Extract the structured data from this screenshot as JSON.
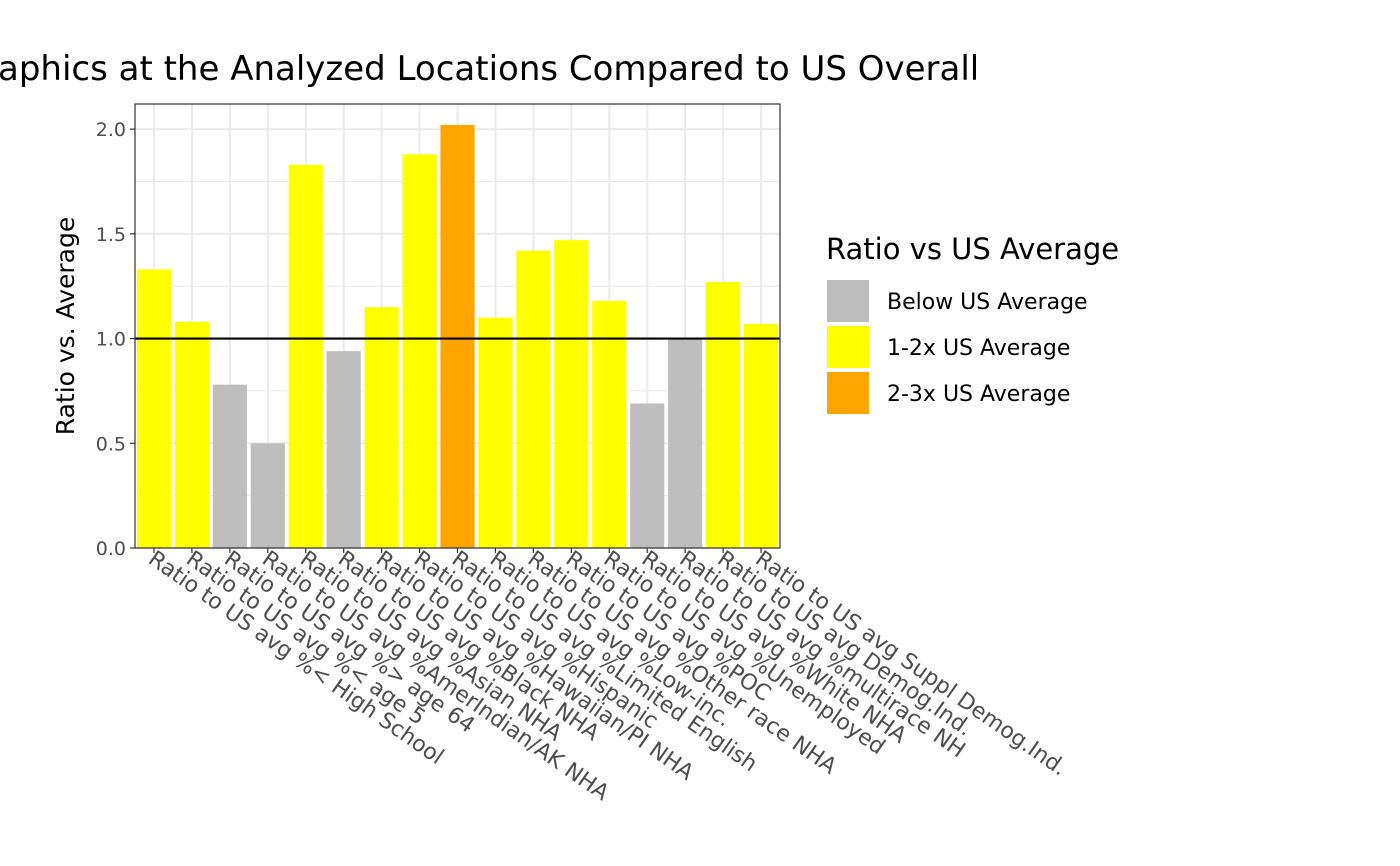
{
  "chart_data": {
    "type": "bar",
    "title": "aphics at the Analyzed Locations Compared to US Overall",
    "xlabel": "",
    "ylabel": "Ratio vs. Average",
    "ylim": [
      0,
      2.12
    ],
    "yticks": [
      "0.0",
      "0.5",
      "1.0",
      "1.5",
      "2.0"
    ],
    "ytick_values": [
      0,
      0.5,
      1.0,
      1.5,
      2.0
    ],
    "reference_line": 1.0,
    "grid": true,
    "legend_position": "right",
    "categories": [
      "Ratio to US avg %< High School",
      "Ratio to US avg %< age 5",
      "Ratio to US avg %> age 64",
      "Ratio to US avg %AmerIndian/AK NHA",
      "Ratio to US avg %Asian NHA",
      "Ratio to US avg %Black NHA",
      "Ratio to US avg %Hawaiian/PI NHA",
      "Ratio to US avg %Hispanic",
      "Ratio to US avg %Limited English",
      "Ratio to US avg %Low-inc.",
      "Ratio to US avg %Other race NHA",
      "Ratio to US avg %POC",
      "Ratio to US avg %Unemployed",
      "Ratio to US avg %White NHA",
      "Ratio to US avg %multirace NH",
      "Ratio to US avg Demog.Ind.",
      "Ratio to US avg Suppl Demog.Ind."
    ],
    "values": [
      1.33,
      1.08,
      0.78,
      0.5,
      1.83,
      0.94,
      1.15,
      1.88,
      2.02,
      1.1,
      1.42,
      1.47,
      1.18,
      0.69,
      1.0,
      1.27,
      1.07
    ],
    "group_index": [
      1,
      1,
      0,
      0,
      1,
      0,
      1,
      1,
      2,
      1,
      1,
      1,
      1,
      0,
      0,
      1,
      1
    ],
    "legend": {
      "title": "Ratio vs US Average",
      "entries": [
        {
          "label": "Below US Average",
          "color": "#bebebe"
        },
        {
          "label": "1-2x US Average",
          "color": "#ffff00"
        },
        {
          "label": "2-3x US Average",
          "color": "#ffa500"
        }
      ]
    }
  },
  "colors": {
    "grid": "#ebebeb",
    "panel_border": "#333333",
    "reference_line": "#000000"
  }
}
